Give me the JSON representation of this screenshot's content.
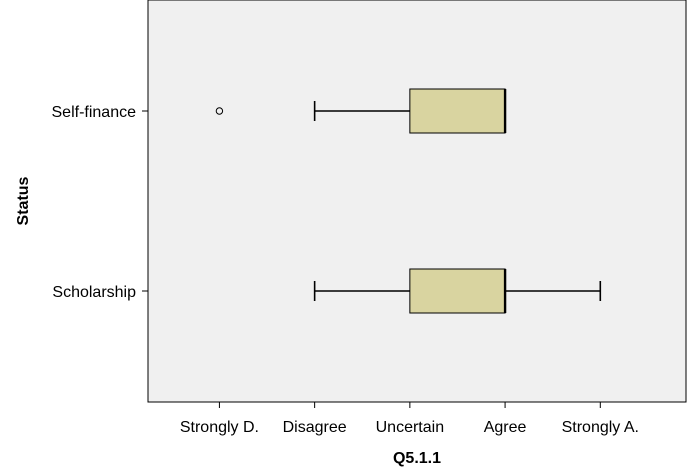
{
  "chart_data": {
    "type": "boxplot",
    "orientation": "horizontal",
    "xlabel": "Q5.1.1",
    "ylabel": "Status",
    "x_ticks": [
      {
        "value": 1,
        "label": "Strongly D."
      },
      {
        "value": 2,
        "label": "Disagree"
      },
      {
        "value": 3,
        "label": "Uncertain"
      },
      {
        "value": 4,
        "label": "Agree"
      },
      {
        "value": 5,
        "label": "Strongly A."
      }
    ],
    "xlim": [
      0.25,
      5.9
    ],
    "categories": [
      "Self-finance",
      "Scholarship"
    ],
    "boxes": [
      {
        "category": "Self-finance",
        "whisker_low": 2,
        "q1": 3,
        "median": 4,
        "q3": 4,
        "whisker_high": 4,
        "outliers": [
          1
        ]
      },
      {
        "category": "Scholarship",
        "whisker_low": 2,
        "q1": 3,
        "median": 4,
        "q3": 4,
        "whisker_high": 5,
        "outliers": []
      }
    ],
    "colors": {
      "plot_background": "#f0f0f0",
      "box_fill": "#d9d4a0",
      "frame": "#000000"
    },
    "grid": false,
    "legend": "none"
  }
}
